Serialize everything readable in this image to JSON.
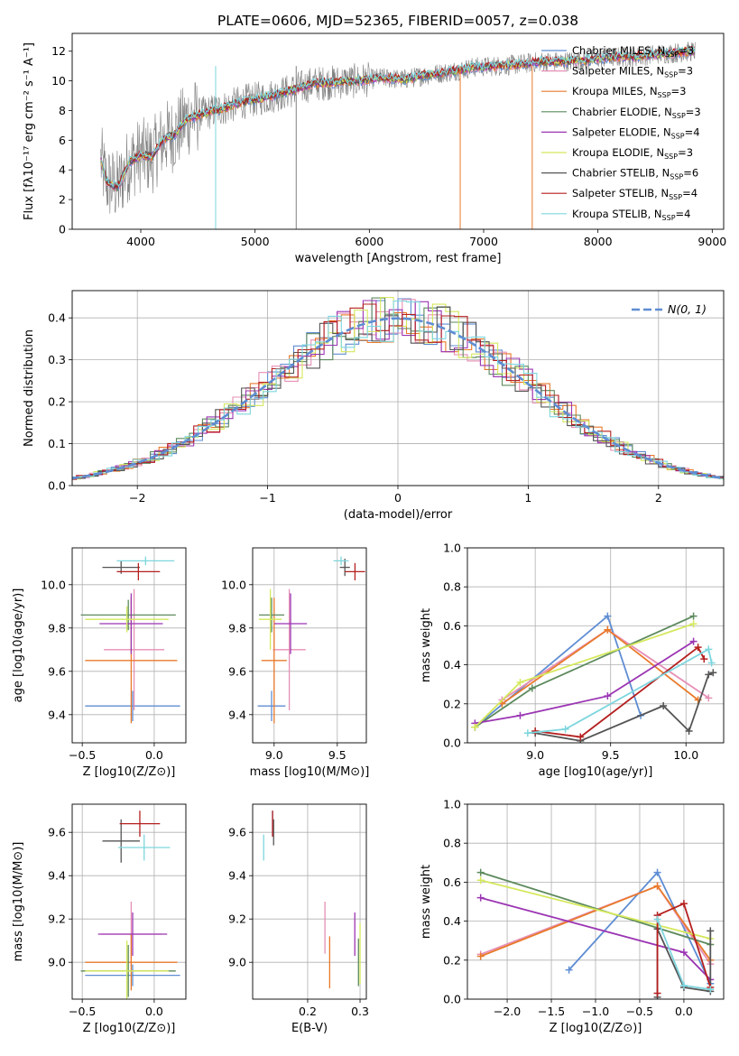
{
  "colors": {
    "Chabrier MILES": "#5f8dd3",
    "Salpeter MILES": "#e68fb5",
    "Kroupa MILES": "#e97a2b",
    "Chabrier ELODIE": "#5d8a5d",
    "Salpeter ELODIE": "#9b35b3",
    "Kroupa ELODIE": "#d5e85c",
    "Chabrier STELIB": "#555555",
    "Salpeter STELIB": "#b51f1f",
    "Kroupa STELIB": "#7dd6de",
    "gaussian": "#5f8dd3",
    "spectrum": "#808080"
  },
  "chart_data": [
    {
      "id": "spectrum",
      "type": "line",
      "title": "PLATE=0606, MJD=52365, FIBERID=0057, z=0.038",
      "xlabel": "wavelength [Angstrom, rest frame]",
      "ylabel": "Flux [fλ10⁻¹⁷ erg cm⁻² s⁻¹ A⁻¹]",
      "xlim": [
        3400,
        9100
      ],
      "ylim": [
        0,
        13.2
      ],
      "xticks": [
        4000,
        5000,
        6000,
        7000,
        8000,
        9000
      ],
      "yticks": [
        0,
        2,
        4,
        6,
        8,
        10,
        12
      ],
      "legend_position": "right",
      "continuum": {
        "x": [
          3650,
          3700,
          3800,
          3900,
          4000,
          4100,
          4200,
          4300,
          4400,
          4500,
          4700,
          4900,
          5100,
          5300,
          5500,
          5700,
          5900,
          6100,
          6300,
          6500,
          6700,
          6900,
          7100,
          7300,
          7500,
          7700,
          7900,
          8100,
          8300,
          8500,
          8700,
          8850
        ],
        "y": [
          4.6,
          3.2,
          2.8,
          4.5,
          5.0,
          4.9,
          6.1,
          6.4,
          7.4,
          7.7,
          8.1,
          8.6,
          8.9,
          9.3,
          9.8,
          9.9,
          10.0,
          10.2,
          10.1,
          10.4,
          10.6,
          10.9,
          11.0,
          11.1,
          11.3,
          11.3,
          11.4,
          11.6,
          11.6,
          11.8,
          11.9,
          12.0
        ]
      },
      "series": [
        {
          "name": "Chabrier MILES, N_SSP=3"
        },
        {
          "name": "Salpeter MILES, N_SSP=3"
        },
        {
          "name": "Kroupa MILES, N_SSP=3"
        },
        {
          "name": "Chabrier ELODIE, N_SSP=3"
        },
        {
          "name": "Salpeter ELODIE, N_SSP=4"
        },
        {
          "name": "Kroupa ELODIE, N_SSP=3"
        },
        {
          "name": "Chabrier STELIB, N_SSP=6"
        },
        {
          "name": "Salpeter STELIB, N_SSP=4"
        },
        {
          "name": "Kroupa STELIB, N_SSP=4"
        }
      ]
    },
    {
      "id": "residuals",
      "type": "line",
      "xlabel": "(data-model)/error",
      "ylabel": "Normed distribution",
      "xlim": [
        -2.5,
        2.5
      ],
      "ylim": [
        0,
        0.465
      ],
      "xticks": [
        -2,
        -1,
        0,
        1,
        2
      ],
      "yticks": [
        0.0,
        0.1,
        0.2,
        0.3,
        0.4
      ],
      "grid": true,
      "legend_position": "top-right",
      "gaussian_label": "N(0, 1)"
    },
    {
      "id": "age_vs_Z",
      "type": "scatter",
      "xlabel": "Z [log10(Z/Z⊙)]",
      "ylabel": "age  [log10(age/yr)]",
      "xlim": [
        -0.57,
        0.22
      ],
      "ylim": [
        9.27,
        10.17
      ],
      "xticks": [
        -0.5,
        0.0
      ],
      "yticks": [
        9.4,
        9.6,
        9.8,
        10.0
      ],
      "grid": true,
      "points": [
        {
          "series": "Chabrier MILES",
          "x": -0.15,
          "y": 9.44,
          "xerr": 0.33,
          "yerr": 0.07
        },
        {
          "series": "Salpeter MILES",
          "x": -0.14,
          "y": 9.7,
          "xerr": 0.21,
          "yerr": 0.28
        },
        {
          "series": "Kroupa MILES",
          "x": -0.16,
          "y": 9.65,
          "xerr": 0.32,
          "yerr": 0.29
        },
        {
          "series": "Chabrier ELODIE",
          "x": -0.18,
          "y": 9.86,
          "xerr": 0.33,
          "yerr": 0.07
        },
        {
          "series": "Salpeter ELODIE",
          "x": -0.16,
          "y": 9.82,
          "xerr": 0.22,
          "yerr": 0.14
        },
        {
          "series": "Kroupa ELODIE",
          "x": -0.19,
          "y": 9.84,
          "xerr": 0.29,
          "yerr": 0.06
        },
        {
          "series": "Chabrier STELIB",
          "x": -0.23,
          "y": 10.08,
          "xerr": 0.13,
          "yerr": 0.03
        },
        {
          "series": "Salpeter STELIB",
          "x": -0.11,
          "y": 10.06,
          "xerr": 0.15,
          "yerr": 0.04
        },
        {
          "series": "Kroupa STELIB",
          "x": -0.06,
          "y": 10.11,
          "xerr": 0.2,
          "yerr": 0.02
        }
      ]
    },
    {
      "id": "age_vs_mass",
      "type": "scatter",
      "xlabel": "mass [log10(M/M⊙)]",
      "ylabel": "",
      "xlim": [
        8.83,
        9.73
      ],
      "ylim": [
        9.27,
        10.17
      ],
      "xticks": [
        9.0,
        9.5
      ],
      "yticks": [
        9.4,
        9.6,
        9.8,
        10.0
      ],
      "grid": true,
      "points": [
        {
          "series": "Chabrier MILES",
          "x": 8.98,
          "y": 9.44,
          "xerr": 0.11,
          "yerr": 0.07
        },
        {
          "series": "Salpeter MILES",
          "x": 9.12,
          "y": 9.7,
          "xerr": 0.13,
          "yerr": 0.28
        },
        {
          "series": "Kroupa MILES",
          "x": 9.0,
          "y": 9.65,
          "xerr": 0.1,
          "yerr": 0.29
        },
        {
          "series": "Chabrier ELODIE",
          "x": 8.98,
          "y": 9.86,
          "xerr": 0.1,
          "yerr": 0.08
        },
        {
          "series": "Salpeter ELODIE",
          "x": 9.13,
          "y": 9.82,
          "xerr": 0.13,
          "yerr": 0.14
        },
        {
          "series": "Kroupa ELODIE",
          "x": 8.97,
          "y": 9.84,
          "xerr": 0.09,
          "yerr": 0.14
        },
        {
          "series": "Chabrier STELIB",
          "x": 9.56,
          "y": 10.08,
          "xerr": 0.04,
          "yerr": 0.04
        },
        {
          "series": "Salpeter STELIB",
          "x": 9.64,
          "y": 10.06,
          "xerr": 0.08,
          "yerr": 0.04
        },
        {
          "series": "Kroupa STELIB",
          "x": 9.53,
          "y": 10.11,
          "xerr": 0.06,
          "yerr": 0.02
        }
      ]
    },
    {
      "id": "weight_vs_age",
      "type": "line",
      "xlabel": "age  [log10(age/yr)]",
      "ylabel": "mass weight",
      "xlim": [
        8.55,
        10.25
      ],
      "ylim": [
        0,
        1.0
      ],
      "xticks": [
        9.0,
        9.5,
        10.0
      ],
      "yticks": [
        0.0,
        0.2,
        0.4,
        0.6,
        0.8,
        1.0
      ],
      "grid": true,
      "series": [
        {
          "key": "Chabrier MILES",
          "x": [
            8.6,
            9.48,
            9.7
          ],
          "y": [
            0.08,
            0.65,
            0.14
          ]
        },
        {
          "key": "Salpeter MILES",
          "x": [
            8.78,
            9.48,
            10.15
          ],
          "y": [
            0.22,
            0.58,
            0.23
          ]
        },
        {
          "key": "Kroupa MILES",
          "x": [
            8.78,
            9.48,
            10.08
          ],
          "y": [
            0.2,
            0.58,
            0.22
          ]
        },
        {
          "key": "Chabrier ELODIE",
          "x": [
            8.6,
            8.98,
            10.05
          ],
          "y": [
            0.08,
            0.28,
            0.65
          ]
        },
        {
          "key": "Salpeter ELODIE",
          "x": [
            8.6,
            8.9,
            9.48,
            10.05
          ],
          "y": [
            0.1,
            0.14,
            0.24,
            0.52
          ]
        },
        {
          "key": "Kroupa ELODIE",
          "x": [
            8.6,
            8.9,
            10.05
          ],
          "y": [
            0.08,
            0.31,
            0.61
          ]
        },
        {
          "key": "Chabrier STELIB",
          "x": [
            9.0,
            9.3,
            9.85,
            10.02,
            10.15,
            10.18
          ],
          "y": [
            0.05,
            0.01,
            0.19,
            0.06,
            0.35,
            0.36
          ]
        },
        {
          "key": "Salpeter STELIB",
          "x": [
            9.0,
            9.3,
            10.08,
            10.12
          ],
          "y": [
            0.06,
            0.03,
            0.49,
            0.43
          ]
        },
        {
          "key": "Kroupa STELIB",
          "x": [
            8.95,
            9.2,
            10.15,
            10.17
          ],
          "y": [
            0.05,
            0.07,
            0.48,
            0.41
          ]
        }
      ]
    },
    {
      "id": "mass_vs_Z",
      "type": "scatter",
      "xlabel": "Z [log10(Z/Z⊙)]",
      "ylabel": "mass [log10(M/M⊙)]",
      "xlim": [
        -0.57,
        0.22
      ],
      "ylim": [
        8.83,
        9.73
      ],
      "xticks": [
        -0.5,
        0.0
      ],
      "yticks": [
        9.0,
        9.2,
        9.4,
        9.6
      ],
      "grid": true,
      "points": [
        {
          "series": "Chabrier MILES",
          "x": -0.15,
          "y": 8.94,
          "xerr": 0.33,
          "yerr": 0.05
        },
        {
          "series": "Salpeter MILES",
          "x": -0.16,
          "y": 9.13,
          "xerr": 0.21,
          "yerr": 0.15
        },
        {
          "series": "Kroupa MILES",
          "x": -0.16,
          "y": 9.0,
          "xerr": 0.32,
          "yerr": 0.13
        },
        {
          "series": "Chabrier ELODIE",
          "x": -0.18,
          "y": 8.96,
          "xerr": 0.33,
          "yerr": 0.12
        },
        {
          "series": "Salpeter ELODIE",
          "x": -0.15,
          "y": 9.13,
          "xerr": 0.24,
          "yerr": 0.1
        },
        {
          "series": "Kroupa ELODIE",
          "x": -0.19,
          "y": 8.96,
          "xerr": 0.29,
          "yerr": 0.14
        },
        {
          "series": "Chabrier STELIB",
          "x": -0.23,
          "y": 9.56,
          "xerr": 0.13,
          "yerr": 0.1
        },
        {
          "series": "Salpeter STELIB",
          "x": -0.1,
          "y": 9.64,
          "xerr": 0.14,
          "yerr": 0.06
        },
        {
          "series": "Kroupa STELIB",
          "x": -0.07,
          "y": 9.53,
          "xerr": 0.18,
          "yerr": 0.06
        }
      ]
    },
    {
      "id": "mass_vs_EBV",
      "type": "scatter",
      "xlabel": "E(B-V)",
      "ylabel": "",
      "xlim": [
        0.095,
        0.312
      ],
      "ylim": [
        8.83,
        9.73
      ],
      "xticks": [
        0.2,
        0.3
      ],
      "yticks": [
        9.0,
        9.2,
        9.4,
        9.6
      ],
      "grid": true,
      "points": [
        {
          "series": "Chabrier MILES",
          "x": 0.133,
          "y": 9.64,
          "xerr": 0,
          "yerr": 0.06
        },
        {
          "series": "Salpeter MILES",
          "x": 0.233,
          "y": 9.16,
          "xerr": 0,
          "yerr": 0.12
        },
        {
          "series": "Kroupa MILES",
          "x": 0.242,
          "y": 9.0,
          "xerr": 0,
          "yerr": 0.12
        },
        {
          "series": "Chabrier ELODIE",
          "x": 0.297,
          "y": 9.0,
          "xerr": 0,
          "yerr": 0.11
        },
        {
          "series": "Salpeter ELODIE",
          "x": 0.29,
          "y": 9.13,
          "xerr": 0,
          "yerr": 0.1
        },
        {
          "series": "Kroupa ELODIE",
          "x": 0.3,
          "y": 9.04,
          "xerr": 0,
          "yerr": 0.14
        },
        {
          "series": "Chabrier STELIB",
          "x": 0.135,
          "y": 9.6,
          "xerr": 0,
          "yerr": 0.06
        },
        {
          "series": "Salpeter STELIB",
          "x": 0.133,
          "y": 9.64,
          "xerr": 0,
          "yerr": 0.06
        },
        {
          "series": "Kroupa STELIB",
          "x": 0.116,
          "y": 9.53,
          "xerr": 0,
          "yerr": 0.06
        }
      ]
    },
    {
      "id": "weight_vs_Z",
      "type": "line",
      "xlabel": "Z [log10(Z/Z⊙)]",
      "ylabel": "mass weight",
      "xlim": [
        -2.45,
        0.45
      ],
      "ylim": [
        0,
        1.0
      ],
      "xticks": [
        -2.0,
        -1.5,
        -1.0,
        -0.5,
        0.0
      ],
      "yticks": [
        0.0,
        0.2,
        0.4,
        0.6,
        0.8,
        1.0
      ],
      "grid": true,
      "series": [
        {
          "key": "Chabrier MILES",
          "x": [
            -1.3,
            -0.3,
            0.3
          ],
          "y": [
            0.15,
            0.65,
            0.08
          ]
        },
        {
          "key": "Salpeter MILES",
          "x": [
            -2.3,
            -0.3,
            0.3
          ],
          "y": [
            0.23,
            0.58,
            0.18
          ]
        },
        {
          "key": "Kroupa MILES",
          "x": [
            -2.3,
            -0.3,
            0.3
          ],
          "y": [
            0.22,
            0.58,
            0.2
          ]
        },
        {
          "key": "Chabrier ELODIE",
          "x": [
            -2.3,
            0.3
          ],
          "y": [
            0.65,
            0.28
          ]
        },
        {
          "key": "Salpeter ELODIE",
          "x": [
            -2.3,
            0.0,
            0.3
          ],
          "y": [
            0.52,
            0.24,
            0.1
          ]
        },
        {
          "key": "Kroupa ELODIE",
          "x": [
            -2.3,
            0.3
          ],
          "y": [
            0.61,
            0.31
          ]
        },
        {
          "key": "Chabrier STELIB",
          "x": [
            -0.3,
            -0.3,
            0.0,
            0.3,
            0.3
          ],
          "y": [
            0.01,
            0.36,
            0.06,
            0.04,
            0.35
          ]
        },
        {
          "key": "Salpeter STELIB",
          "x": [
            -0.3,
            -0.3,
            0.0,
            0.3
          ],
          "y": [
            0.03,
            0.43,
            0.49,
            0.06
          ]
        },
        {
          "key": "Kroupa STELIB",
          "x": [
            -0.3,
            0.0,
            0.3
          ],
          "y": [
            0.41,
            0.07,
            0.05
          ]
        }
      ]
    }
  ]
}
